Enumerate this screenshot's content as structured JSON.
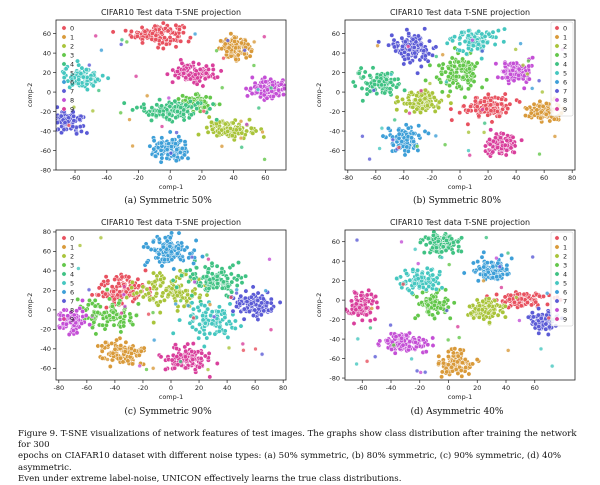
{
  "chart_data": [
    {
      "type": "scatter",
      "title": "CIFAR10 Test data T-SNE projection",
      "xlabel": "comp-1",
      "ylabel": "comp-2",
      "xlim": [
        -72,
        73
      ],
      "ylim": [
        -80,
        74
      ],
      "xticks": [
        -60,
        -40,
        -20,
        0,
        20,
        40,
        60
      ],
      "yticks": [
        -80,
        -60,
        -40,
        -20,
        0,
        20,
        40,
        60
      ],
      "legend_position": "top-left",
      "subcaption": "(a) Symmetric 50%",
      "clusters": [
        {
          "label": "0",
          "color": "#e8515f",
          "x": -8,
          "y": 60,
          "sx": 8,
          "sy": 5,
          "n": 140
        },
        {
          "label": "1",
          "color": "#d99a3a",
          "x": 41,
          "y": 45,
          "sx": 5,
          "sy": 5,
          "n": 110
        },
        {
          "label": "2",
          "color": "#a9c43a",
          "x": 38,
          "y": -38,
          "sx": 7,
          "sy": 4.5,
          "n": 110
        },
        {
          "label": "3",
          "color": "#63c74a",
          "x": 15,
          "y": -12,
          "sx": 6,
          "sy": 4,
          "n": 90
        },
        {
          "label": "4",
          "color": "#3fc283",
          "x": 0,
          "y": -18,
          "sx": 10,
          "sy": 5,
          "n": 130
        },
        {
          "label": "5",
          "color": "#45c7c0",
          "x": -55,
          "y": 15,
          "sx": 6,
          "sy": 6,
          "n": 90
        },
        {
          "label": "6",
          "color": "#3d9fd8",
          "x": 0,
          "y": -60,
          "sx": 6,
          "sy": 6,
          "n": 120
        },
        {
          "label": "7",
          "color": "#5b5bd6",
          "x": -66,
          "y": -30,
          "sx": 6,
          "sy": 6,
          "n": 110
        },
        {
          "label": "8",
          "color": "#c44fd6",
          "x": 62,
          "y": 3,
          "sx": 6,
          "sy": 5,
          "n": 110
        },
        {
          "label": "9",
          "color": "#d93f9c",
          "x": 15,
          "y": 20,
          "sx": 7,
          "sy": 5,
          "n": 120
        }
      ]
    },
    {
      "type": "scatter",
      "title": "CIFAR10 Test data T-SNE projection",
      "xlabel": "comp-1",
      "ylabel": "comp-2",
      "xlim": [
        -82,
        82
      ],
      "ylim": [
        -80,
        74
      ],
      "xticks": [
        -80,
        -60,
        -40,
        -20,
        0,
        20,
        40,
        60,
        80
      ],
      "yticks": [
        -60,
        -40,
        -20,
        0,
        20,
        40,
        60
      ],
      "legend_position": "top-right",
      "subcaption": "(b) Symmetric 80%",
      "clusters": [
        {
          "label": "0",
          "color": "#e8515f",
          "x": 20,
          "y": -15,
          "sx": 8,
          "sy": 6,
          "n": 120
        },
        {
          "label": "1",
          "color": "#d99a3a",
          "x": 60,
          "y": -20,
          "sx": 6,
          "sy": 5,
          "n": 100
        },
        {
          "label": "2",
          "color": "#a9c43a",
          "x": -28,
          "y": -10,
          "sx": 8,
          "sy": 6,
          "n": 100
        },
        {
          "label": "3",
          "color": "#63c74a",
          "x": 0,
          "y": 20,
          "sx": 8,
          "sy": 8,
          "n": 110
        },
        {
          "label": "4",
          "color": "#3fc283",
          "x": -60,
          "y": 10,
          "sx": 8,
          "sy": 6,
          "n": 100
        },
        {
          "label": "5",
          "color": "#45c7c0",
          "x": 10,
          "y": 52,
          "sx": 8,
          "sy": 6,
          "n": 100
        },
        {
          "label": "6",
          "color": "#3d9fd8",
          "x": -40,
          "y": -48,
          "sx": 6,
          "sy": 6,
          "n": 100
        },
        {
          "label": "7",
          "color": "#5b5bd6",
          "x": -35,
          "y": 45,
          "sx": 7,
          "sy": 7,
          "n": 110
        },
        {
          "label": "8",
          "color": "#c44fd6",
          "x": 40,
          "y": 20,
          "sx": 6,
          "sy": 6,
          "n": 100
        },
        {
          "label": "9",
          "color": "#d93f9c",
          "x": 30,
          "y": -55,
          "sx": 6,
          "sy": 6,
          "n": 100
        }
      ]
    },
    {
      "type": "scatter",
      "title": "CIFAR10 Test data T-SNE projection",
      "xlabel": "comp-1",
      "ylabel": "comp-2",
      "xlim": [
        -82,
        82
      ],
      "ylim": [
        -72,
        82
      ],
      "xticks": [
        -80,
        -60,
        -40,
        -20,
        0,
        20,
        40,
        60,
        80
      ],
      "yticks": [
        -60,
        -40,
        -20,
        0,
        20,
        40,
        60,
        80
      ],
      "legend_position": "top-left",
      "subcaption": "(c) Symmetric 90%",
      "clusters": [
        {
          "label": "0",
          "color": "#e8515f",
          "x": -35,
          "y": 20,
          "sx": 9,
          "sy": 8,
          "n": 120
        },
        {
          "label": "1",
          "color": "#d99a3a",
          "x": -35,
          "y": -45,
          "sx": 8,
          "sy": 6,
          "n": 110
        },
        {
          "label": "2",
          "color": "#a9c43a",
          "x": 0,
          "y": 20,
          "sx": 12,
          "sy": 10,
          "n": 120
        },
        {
          "label": "3",
          "color": "#63c74a",
          "x": -45,
          "y": -5,
          "sx": 10,
          "sy": 8,
          "n": 100
        },
        {
          "label": "4",
          "color": "#3fc283",
          "x": 30,
          "y": 30,
          "sx": 10,
          "sy": 8,
          "n": 110
        },
        {
          "label": "5",
          "color": "#45c7c0",
          "x": 25,
          "y": -10,
          "sx": 10,
          "sy": 8,
          "n": 100
        },
        {
          "label": "6",
          "color": "#3d9fd8",
          "x": 0,
          "y": 60,
          "sx": 8,
          "sy": 8,
          "n": 110
        },
        {
          "label": "7",
          "color": "#5b5bd6",
          "x": 60,
          "y": 5,
          "sx": 8,
          "sy": 7,
          "n": 100
        },
        {
          "label": "8",
          "color": "#c44fd6",
          "x": -70,
          "y": -10,
          "sx": 5,
          "sy": 6,
          "n": 80
        },
        {
          "label": "9",
          "color": "#d93f9c",
          "x": 10,
          "y": -50,
          "sx": 8,
          "sy": 6,
          "n": 110
        }
      ]
    },
    {
      "type": "scatter",
      "title": "CIFAR10 Test data T-SNE projection",
      "xlabel": "comp-1",
      "ylabel": "comp-2",
      "xlim": [
        -72,
        88
      ],
      "ylim": [
        -82,
        72
      ],
      "xticks": [
        -60,
        -40,
        -20,
        0,
        20,
        40,
        60
      ],
      "yticks": [
        -80,
        -60,
        -40,
        -20,
        0,
        20,
        40,
        60
      ],
      "legend_position": "top-right",
      "subcaption": "(d) Asymmetric 40%",
      "clusters": [
        {
          "label": "0",
          "color": "#e8515f",
          "x": 50,
          "y": 0,
          "sx": 10,
          "sy": 4,
          "n": 90
        },
        {
          "label": "1",
          "color": "#d99a3a",
          "x": 5,
          "y": -65,
          "sx": 6,
          "sy": 6,
          "n": 100
        },
        {
          "label": "2",
          "color": "#a9c43a",
          "x": 25,
          "y": -10,
          "sx": 6,
          "sy": 6,
          "n": 90
        },
        {
          "label": "3",
          "color": "#63c74a",
          "x": -10,
          "y": -5,
          "sx": 6,
          "sy": 7,
          "n": 90
        },
        {
          "label": "4",
          "color": "#3fc283",
          "x": -5,
          "y": 58,
          "sx": 6,
          "sy": 5,
          "n": 100
        },
        {
          "label": "5",
          "color": "#45c7c0",
          "x": -20,
          "y": 20,
          "sx": 7,
          "sy": 6,
          "n": 90
        },
        {
          "label": "6",
          "color": "#3d9fd8",
          "x": 30,
          "y": 30,
          "sx": 6,
          "sy": 6,
          "n": 100
        },
        {
          "label": "7",
          "color": "#5b5bd6",
          "x": 65,
          "y": -22,
          "sx": 5,
          "sy": 5,
          "n": 80
        },
        {
          "label": "8",
          "color": "#c44fd6",
          "x": -30,
          "y": -45,
          "sx": 9,
          "sy": 5,
          "n": 110
        },
        {
          "label": "9",
          "color": "#d93f9c",
          "x": -62,
          "y": -5,
          "sx": 5,
          "sy": 7,
          "n": 90
        }
      ]
    }
  ],
  "caption": {
    "line1": "Figure 9.  T-SNE visualizations of network features of test images.  The graphs show class distribution after training the network for 300",
    "line2": "epochs on CIAFAR10 dataset with different noise types: (a) 50% symmetric, (b) 80% symmetric, (c) 90% symmetric, (d) 40% asymmetric.",
    "line3_pre": "Even under extreme label-noise, U",
    "line3_sc": "NI",
    "line3_mid": "C",
    "line3_sc2": "ON",
    "line3_post": " effectively learns the true class distributions."
  }
}
